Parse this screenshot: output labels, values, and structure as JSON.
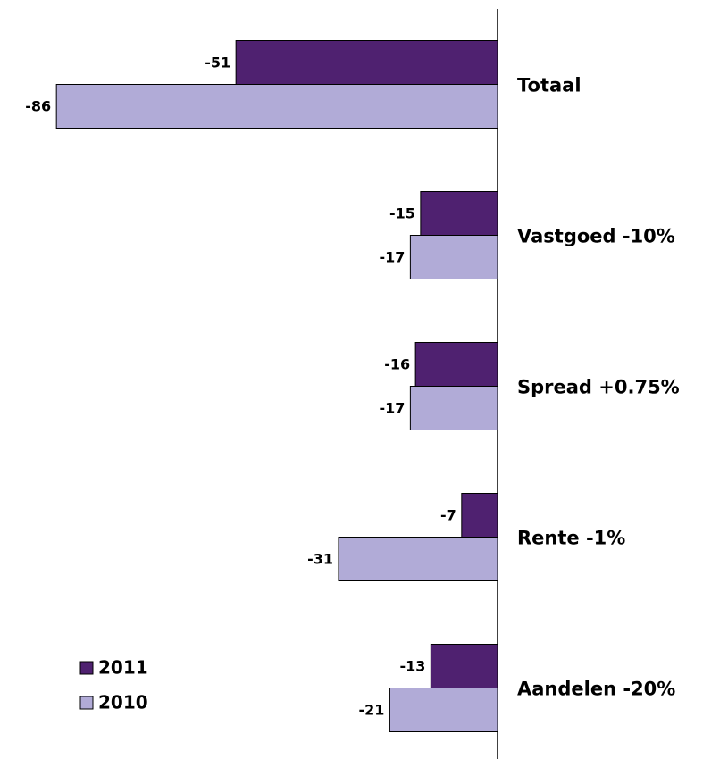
{
  "chart_data": {
    "type": "barh",
    "categories": [
      "Totaal",
      "Vastgoed -10%",
      "Spread +0.75%",
      "Rente -1%",
      "Aandelen -20%"
    ],
    "series": [
      {
        "name": "2011",
        "color": "#4f2170",
        "values": [
          -51,
          -15,
          -16,
          -7,
          -13
        ]
      },
      {
        "name": "2010",
        "color": "#b1abd7",
        "values": [
          -86,
          -17,
          -17,
          -31,
          -21
        ]
      }
    ],
    "xlim": [
      -97,
      0
    ],
    "legend": "bottom-left"
  }
}
